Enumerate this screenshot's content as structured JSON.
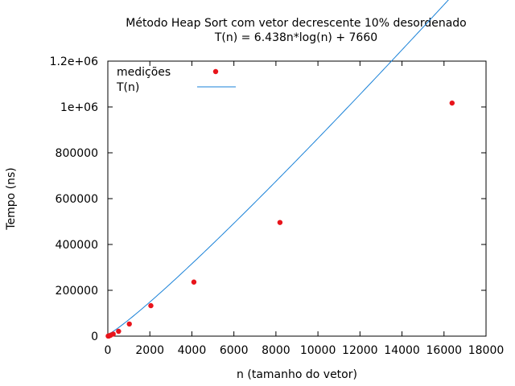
{
  "chart_data": {
    "type": "scatter",
    "title": "Método Heap Sort com vetor decrescente 10% desordenado",
    "subtitle": "T(n) = 6.438n*log(n) + 7660",
    "xlabel": "n (tamanho do vetor)",
    "ylabel": "Tempo (ns)",
    "xlim": [
      0,
      18000
    ],
    "ylim": [
      0,
      1200000
    ],
    "xticks": [
      0,
      2000,
      4000,
      6000,
      8000,
      10000,
      12000,
      14000,
      16000,
      18000
    ],
    "xtick_labels": [
      "0",
      "2000",
      "4000",
      "6000",
      "8000",
      "10000",
      "12000",
      "14000",
      "16000",
      "18000"
    ],
    "yticks": [
      0,
      200000,
      400000,
      600000,
      800000,
      1000000,
      1200000
    ],
    "ytick_labels": [
      "0",
      "200000",
      "400000",
      "600000",
      "800000",
      "1e+06",
      "1.2e+06"
    ],
    "grid": false,
    "legend_position": "top-left",
    "series": [
      {
        "name": "medições",
        "kind": "points",
        "color": "#e8141b",
        "x": [
          16,
          32,
          64,
          128,
          256,
          512,
          1024,
          2048,
          4096,
          8192,
          16384
        ],
        "y": [
          300,
          600,
          1200,
          4000,
          9000,
          21000,
          53000,
          133000,
          236000,
          496000,
          1017000
        ]
      },
      {
        "name": "T(n)",
        "kind": "line",
        "color": "#1a82d8",
        "formula": "6.438*n*log2(n) + 7660",
        "x_range": [
          0,
          16384
        ]
      }
    ]
  }
}
